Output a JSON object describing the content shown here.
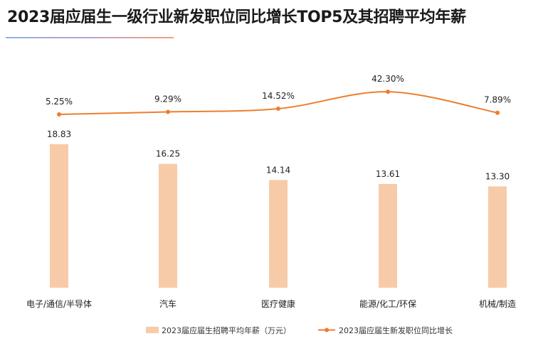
{
  "chart_data": {
    "type": "bar",
    "title": "2023届应届生一级行业新发职位同比增长TOP5及其招聘平均年薪",
    "categories": [
      "电子/通信/半导体",
      "汽车",
      "医疗健康",
      "能源/化工/环保",
      "机械/制造"
    ],
    "series": [
      {
        "name": "2023届应届生招聘平均年薪（万元）",
        "type": "bar",
        "values": [
          18.83,
          16.25,
          14.14,
          13.61,
          13.3
        ],
        "labels": [
          "18.83",
          "16.25",
          "14.14",
          "13.61",
          "13.30"
        ],
        "color": "#f8cba8"
      },
      {
        "name": "2023届应届生新发职位同比增长",
        "type": "line",
        "values": [
          5.25,
          9.29,
          14.52,
          42.3,
          7.89
        ],
        "labels": [
          "5.25%",
          "9.29%",
          "14.52%",
          "42.30%",
          "7.89%"
        ],
        "color": "#ee7d2e"
      }
    ],
    "legend_position": "bottom",
    "grid": false
  }
}
